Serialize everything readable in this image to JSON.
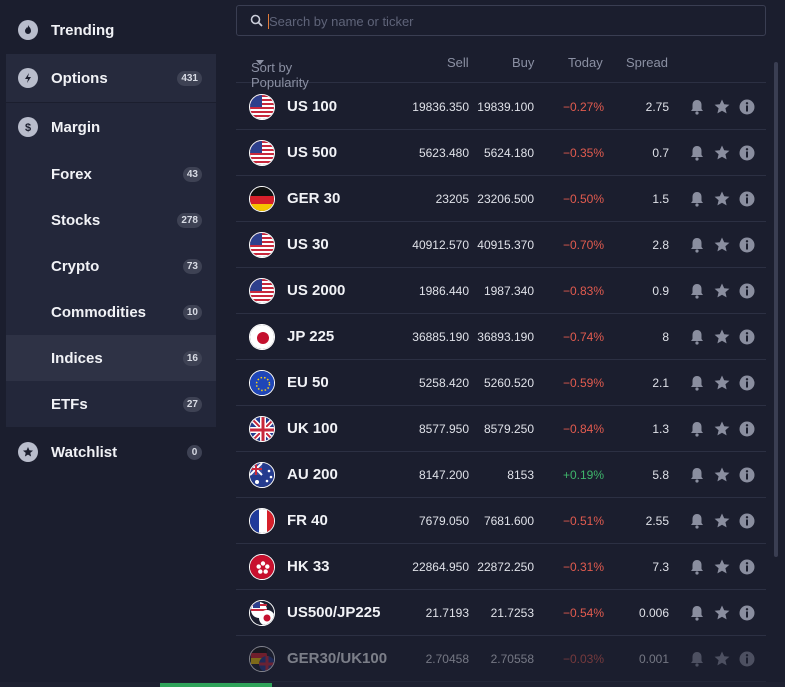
{
  "sidebar": {
    "items": [
      {
        "label": "Trending",
        "icon": "flame-icon",
        "badge": ""
      },
      {
        "label": "Options",
        "icon": "bolt-icon",
        "badge": "431"
      },
      {
        "label": "Margin",
        "icon": "dollar-icon",
        "badge": ""
      },
      {
        "label": "Forex",
        "badge": "43"
      },
      {
        "label": "Stocks",
        "badge": "278"
      },
      {
        "label": "Crypto",
        "badge": "73"
      },
      {
        "label": "Commodities",
        "badge": "10"
      },
      {
        "label": "Indices",
        "badge": "16"
      },
      {
        "label": "ETFs",
        "badge": "27"
      },
      {
        "label": "Watchlist",
        "icon": "star-icon",
        "badge": "0"
      }
    ]
  },
  "search": {
    "placeholder": "Search by name or ticker",
    "value": ""
  },
  "table": {
    "headers": {
      "sort": "Sort by Popularity",
      "sell": "Sell",
      "buy": "Buy",
      "today": "Today",
      "spread": "Spread"
    },
    "rows": [
      {
        "name": "US 100",
        "flag": "us",
        "sell": "19836.350",
        "buy": "19839.100",
        "today": "−0.27%",
        "dir": "neg",
        "spread": "2.75"
      },
      {
        "name": "US 500",
        "flag": "us",
        "sell": "5623.480",
        "buy": "5624.180",
        "today": "−0.35%",
        "dir": "neg",
        "spread": "0.7"
      },
      {
        "name": "GER 30",
        "flag": "de",
        "sell": "23205",
        "buy": "23206.500",
        "today": "−0.50%",
        "dir": "neg",
        "spread": "1.5"
      },
      {
        "name": "US 30",
        "flag": "us",
        "sell": "40912.570",
        "buy": "40915.370",
        "today": "−0.70%",
        "dir": "neg",
        "spread": "2.8"
      },
      {
        "name": "US 2000",
        "flag": "us",
        "sell": "1986.440",
        "buy": "1987.340",
        "today": "−0.83%",
        "dir": "neg",
        "spread": "0.9"
      },
      {
        "name": "JP 225",
        "flag": "jp",
        "sell": "36885.190",
        "buy": "36893.190",
        "today": "−0.74%",
        "dir": "neg",
        "spread": "8"
      },
      {
        "name": "EU 50",
        "flag": "eu",
        "sell": "5258.420",
        "buy": "5260.520",
        "today": "−0.59%",
        "dir": "neg",
        "spread": "2.1"
      },
      {
        "name": "UK 100",
        "flag": "uk",
        "sell": "8577.950",
        "buy": "8579.250",
        "today": "−0.84%",
        "dir": "neg",
        "spread": "1.3"
      },
      {
        "name": "AU 200",
        "flag": "au",
        "sell": "8147.200",
        "buy": "8153",
        "today": "+0.19%",
        "dir": "pos",
        "spread": "5.8"
      },
      {
        "name": "FR 40",
        "flag": "fr",
        "sell": "7679.050",
        "buy": "7681.600",
        "today": "−0.51%",
        "dir": "neg",
        "spread": "2.55"
      },
      {
        "name": "HK 33",
        "flag": "hk",
        "sell": "22864.950",
        "buy": "22872.250",
        "today": "−0.31%",
        "dir": "neg",
        "spread": "7.3"
      },
      {
        "name": "US500/JP225",
        "flag": "us-jp",
        "sell": "21.7193",
        "buy": "21.7253",
        "today": "−0.54%",
        "dir": "neg",
        "spread": "0.006"
      },
      {
        "name": "GER30/UK100",
        "flag": "de-uk",
        "sell": "2.70458",
        "buy": "2.70558",
        "today": "−0.03%",
        "dir": "neg",
        "spread": "0.001"
      }
    ]
  },
  "colors": {
    "background": "#1b1e2e",
    "negative": "#e25b4f",
    "positive": "#3fb56b",
    "accent": "#e07b3a"
  }
}
